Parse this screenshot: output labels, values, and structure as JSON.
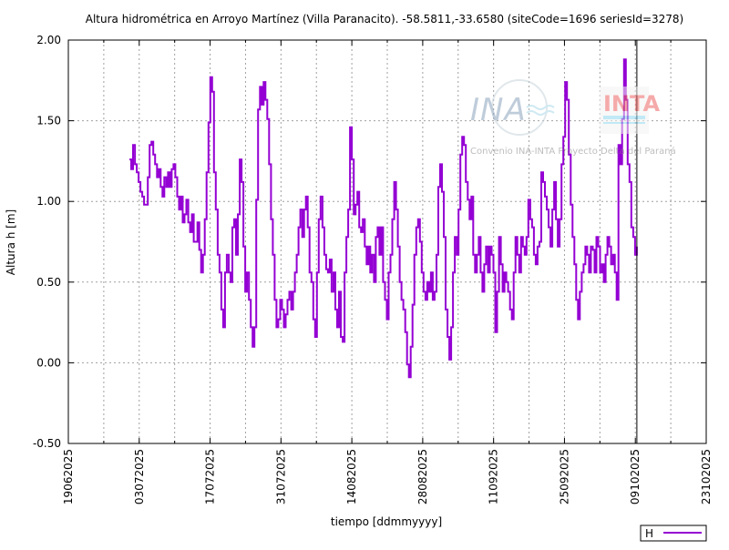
{
  "chart_data": {
    "type": "line",
    "title": "Altura hidrométrica en Arroyo Martínez (Villa Paranacito). -58.5811,-33.6580  (siteCode=1696 seriesId=3278)",
    "xlabel": "tiempo [ddmmyyyy]",
    "ylabel": "Altura h [m]",
    "x_unit": "days since 19/06/2025",
    "xlim": [
      0,
      126
    ],
    "ylim": [
      -0.5,
      2.0
    ],
    "grid": true,
    "legend_placement": "bottom-right, outside",
    "x_ticks": [
      {
        "day": 0,
        "label": "19062025"
      },
      {
        "day": 14,
        "label": "03072025"
      },
      {
        "day": 28,
        "label": "17072025"
      },
      {
        "day": 42,
        "label": "31072025"
      },
      {
        "day": 56,
        "label": "14082025"
      },
      {
        "day": 70,
        "label": "28082025"
      },
      {
        "day": 84,
        "label": "11092025"
      },
      {
        "day": 98,
        "label": "25092025"
      },
      {
        "day": 112,
        "label": "09102025"
      },
      {
        "day": 126,
        "label": "23102025"
      }
    ],
    "y_ticks": [
      {
        "value": 2.0,
        "label": "2.00"
      },
      {
        "value": 1.5,
        "label": "1.50"
      },
      {
        "value": 1.0,
        "label": "1.00"
      },
      {
        "value": 0.5,
        "label": "0.50"
      },
      {
        "value": 0.0,
        "label": "0.00"
      },
      {
        "value": -0.5,
        "label": "-0.50"
      }
    ],
    "marker_line_day": 112.3,
    "series": [
      {
        "name": "H",
        "color": "#9400d3",
        "start_day": 12.06,
        "end_day": 112.3,
        "values": [
          1.26,
          1.2,
          1.35,
          1.23,
          1.18,
          1.12,
          1.06,
          1.03,
          0.98,
          0.98,
          1.15,
          1.35,
          1.37,
          1.29,
          1.23,
          1.15,
          1.2,
          1.09,
          1.03,
          1.15,
          1.09,
          1.18,
          1.09,
          1.2,
          1.23,
          1.15,
          1.03,
          0.95,
          1.03,
          0.87,
          0.92,
          1.01,
          0.87,
          0.81,
          0.92,
          0.75,
          0.75,
          0.87,
          0.7,
          0.56,
          0.67,
          0.89,
          1.18,
          1.49,
          1.77,
          1.68,
          1.18,
          0.95,
          0.67,
          0.56,
          0.33,
          0.22,
          0.56,
          0.67,
          0.56,
          0.5,
          0.84,
          0.89,
          0.67,
          0.92,
          1.26,
          1.12,
          0.72,
          0.44,
          0.56,
          0.39,
          0.22,
          0.1,
          0.22,
          1.01,
          1.57,
          1.71,
          1.6,
          1.74,
          1.63,
          1.51,
          1.23,
          0.89,
          0.67,
          0.39,
          0.22,
          0.27,
          0.39,
          0.33,
          0.22,
          0.3,
          0.39,
          0.44,
          0.33,
          0.44,
          0.56,
          0.67,
          0.84,
          0.95,
          0.78,
          0.95,
          1.03,
          0.84,
          0.56,
          0.5,
          0.27,
          0.16,
          0.56,
          0.89,
          1.03,
          0.84,
          0.67,
          0.58,
          0.56,
          0.64,
          0.44,
          0.56,
          0.33,
          0.22,
          0.44,
          0.16,
          0.13,
          0.56,
          0.78,
          0.95,
          1.46,
          1.26,
          0.92,
          0.98,
          1.06,
          0.84,
          0.81,
          0.89,
          0.72,
          0.61,
          0.72,
          0.56,
          0.67,
          0.5,
          0.78,
          0.84,
          0.67,
          0.84,
          0.5,
          0.39,
          0.27,
          0.56,
          0.67,
          0.89,
          1.12,
          0.95,
          0.72,
          0.5,
          0.39,
          0.33,
          0.19,
          -0.01,
          -0.09,
          0.1,
          0.36,
          0.67,
          0.84,
          0.89,
          0.75,
          0.56,
          0.44,
          0.39,
          0.5,
          0.44,
          0.56,
          0.39,
          0.44,
          0.67,
          1.09,
          1.23,
          1.06,
          0.78,
          0.33,
          0.16,
          0.02,
          0.22,
          0.56,
          0.78,
          0.67,
          0.95,
          1.29,
          1.4,
          1.35,
          1.12,
          1.01,
          0.89,
          1.03,
          0.67,
          0.56,
          0.67,
          0.78,
          0.56,
          0.44,
          0.61,
          0.72,
          0.56,
          0.72,
          0.67,
          0.56,
          0.19,
          0.44,
          0.78,
          0.61,
          0.44,
          0.56,
          0.5,
          0.44,
          0.33,
          0.27,
          0.56,
          0.78,
          0.67,
          0.56,
          0.78,
          0.72,
          0.67,
          0.78,
          1.01,
          0.89,
          0.84,
          0.67,
          0.61,
          0.72,
          0.75,
          1.18,
          1.12,
          1.03,
          0.95,
          0.84,
          0.72,
          0.95,
          1.12,
          0.89,
          0.72,
          0.89,
          1.23,
          1.4,
          1.74,
          1.63,
          1.29,
          0.98,
          0.78,
          0.61,
          0.39,
          0.27,
          0.44,
          0.56,
          0.61,
          0.72,
          0.67,
          0.56,
          0.72,
          0.7,
          0.56,
          0.78,
          0.72,
          0.56,
          0.61,
          0.5,
          0.67,
          0.78,
          0.72,
          0.61,
          0.67,
          0.56,
          0.39,
          1.35,
          1.23,
          1.51,
          1.88,
          1.63,
          1.23,
          1.12,
          0.84,
          0.78,
          0.67,
          0.72
        ]
      }
    ]
  },
  "watermark": {
    "logo_left": "INA",
    "logo_right": "INTA",
    "caption": "Convenio INA-INTA Proyecto Delta del Paraná"
  }
}
